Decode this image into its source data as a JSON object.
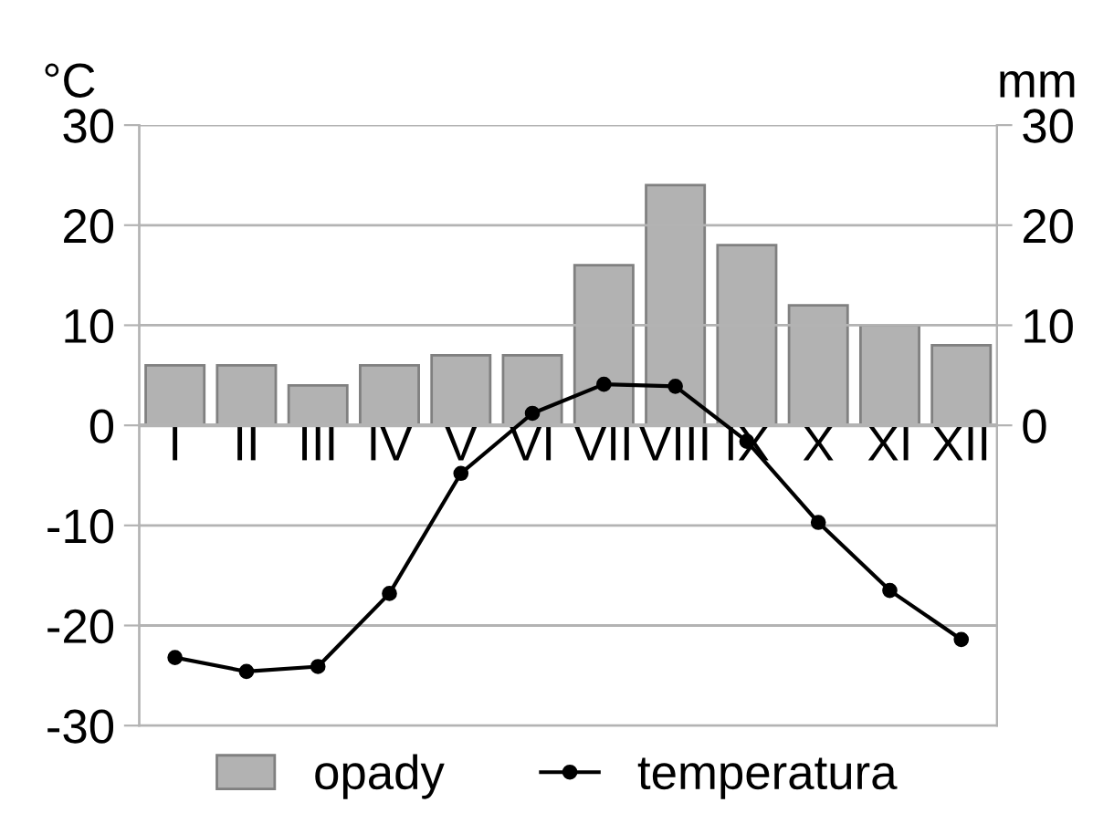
{
  "chart_data": {
    "type": "bar",
    "categories": [
      "I",
      "II",
      "III",
      "IV",
      "V",
      "VI",
      "VII",
      "VIII",
      "IX",
      "X",
      "XI",
      "XII"
    ],
    "ylabel": "°C",
    "y2label": "mm",
    "ylim": [
      -30,
      30
    ],
    "yticks": [
      -30,
      -20,
      -10,
      0,
      10,
      20,
      30
    ],
    "y2lim": [
      -30,
      30
    ],
    "y2ticks": [
      0,
      10,
      20,
      30
    ],
    "series": [
      {
        "name": "opady",
        "axis": "y2",
        "color": "#b2b2b2",
        "values": [
          6,
          6,
          4,
          6,
          7,
          7,
          16,
          24,
          18,
          12,
          10,
          8
        ]
      },
      {
        "name": "temperatura",
        "type": "line",
        "axis": "y",
        "color": "#000000",
        "marker": "circle",
        "values": [
          -23.2,
          -24.6,
          -24.1,
          -16.8,
          -4.8,
          1.2,
          4.1,
          3.9,
          -1.6,
          -9.7,
          -16.5,
          -21.4
        ]
      }
    ],
    "grid": "y",
    "legend": "bottom"
  }
}
